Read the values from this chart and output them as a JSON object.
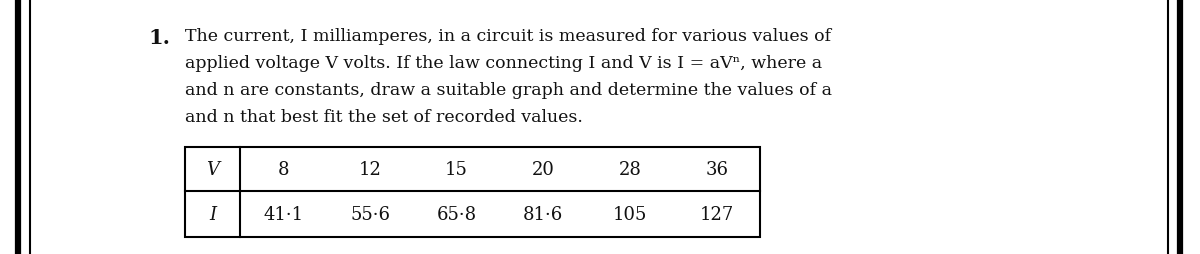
{
  "background_color": "#ffffff",
  "number_label": "1.",
  "text_lines": [
    "The current, I milliamperes, in a circuit is measured for various values of",
    "applied voltage V volts. If the law connecting I and V is I = aVⁿ, where a",
    "and n are constants, draw a suitable graph and determine the values of a",
    "and n that best fit the set of recorded values."
  ],
  "table_row1": [
    "V",
    "8",
    "12",
    "15",
    "20",
    "28",
    "36"
  ],
  "table_row2": [
    "I",
    "41·1",
    "55·6",
    "65·8",
    "81·6",
    "105",
    "127"
  ],
  "text_color": "#111111",
  "font_size_number": 15,
  "font_size_text": 12.5,
  "font_size_table": 13
}
